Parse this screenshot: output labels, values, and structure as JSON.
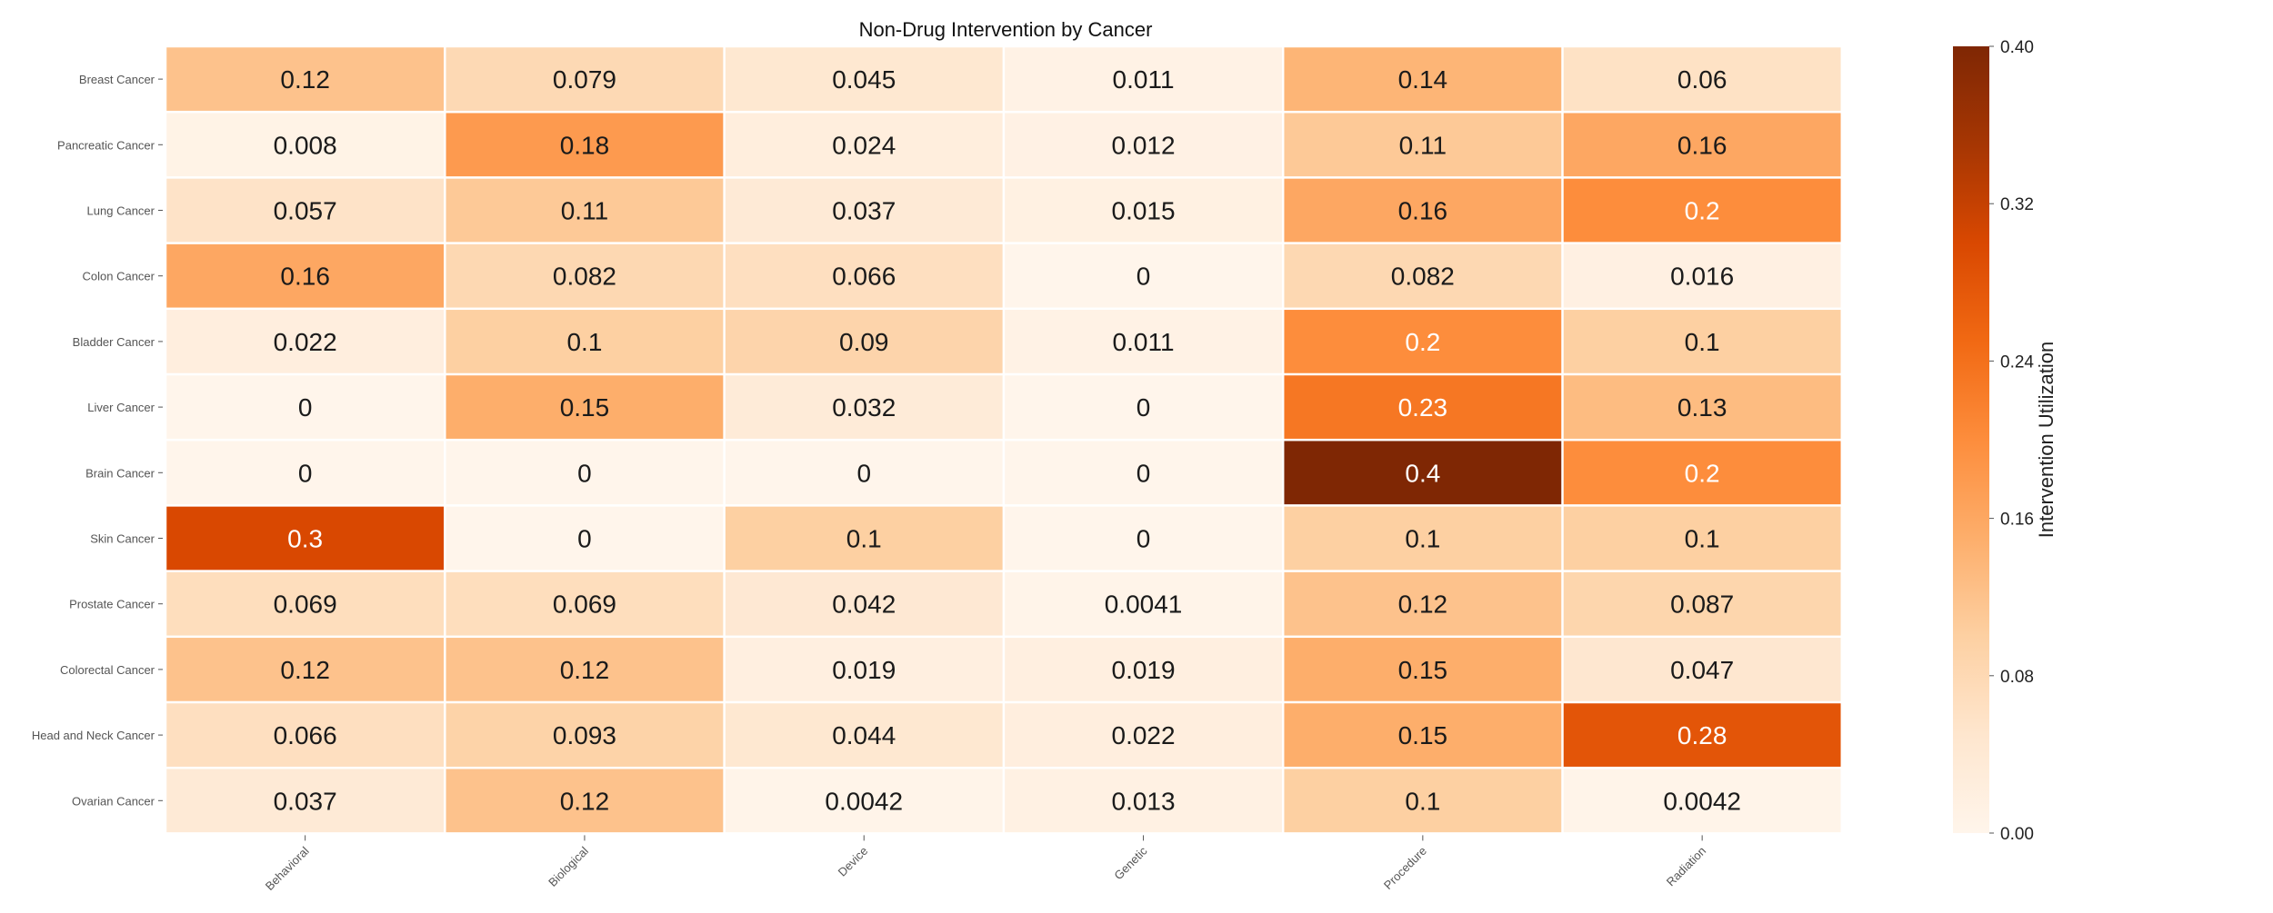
{
  "chart_data": {
    "type": "heatmap",
    "title": "Non-Drug Intervention by Cancer",
    "rows": [
      "Breast Cancer",
      "Pancreatic Cancer",
      "Lung Cancer",
      "Colon Cancer",
      "Bladder Cancer",
      "Liver Cancer",
      "Brain Cancer",
      "Skin Cancer",
      "Prostate Cancer",
      "Colorectal Cancer",
      "Head and Neck Cancer",
      "Ovarian Cancer"
    ],
    "columns": [
      "Behavioral",
      "Biological",
      "Device",
      "Genetic",
      "Procedure",
      "Radiation"
    ],
    "values": [
      [
        0.12,
        0.079,
        0.045,
        0.011,
        0.14,
        0.06
      ],
      [
        0.008,
        0.18,
        0.024,
        0.012,
        0.11,
        0.16
      ],
      [
        0.057,
        0.11,
        0.037,
        0.015,
        0.16,
        0.2
      ],
      [
        0.16,
        0.082,
        0.066,
        0,
        0.082,
        0.016
      ],
      [
        0.022,
        0.1,
        0.09,
        0.011,
        0.2,
        0.1
      ],
      [
        0,
        0.15,
        0.032,
        0,
        0.23,
        0.13
      ],
      [
        0,
        0,
        0,
        0,
        0.4,
        0.2
      ],
      [
        0.3,
        0,
        0.1,
        0,
        0.1,
        0.1
      ],
      [
        0.069,
        0.069,
        0.042,
        0.0041,
        0.12,
        0.087
      ],
      [
        0.12,
        0.12,
        0.019,
        0.019,
        0.15,
        0.047
      ],
      [
        0.066,
        0.093,
        0.044,
        0.022,
        0.15,
        0.28
      ],
      [
        0.037,
        0.12,
        0.0042,
        0.013,
        0.1,
        0.0042
      ]
    ],
    "labels": [
      [
        "0.12",
        "0.079",
        "0.045",
        "0.011",
        "0.14",
        "0.06"
      ],
      [
        "0.008",
        "0.18",
        "0.024",
        "0.012",
        "0.11",
        "0.16"
      ],
      [
        "0.057",
        "0.11",
        "0.037",
        "0.015",
        "0.16",
        "0.2"
      ],
      [
        "0.16",
        "0.082",
        "0.066",
        "0",
        "0.082",
        "0.016"
      ],
      [
        "0.022",
        "0.1",
        "0.09",
        "0.011",
        "0.2",
        "0.1"
      ],
      [
        "0",
        "0.15",
        "0.032",
        "0",
        "0.23",
        "0.13"
      ],
      [
        "0",
        "0",
        "0",
        "0",
        "0.4",
        "0.2"
      ],
      [
        "0.3",
        "0",
        "0.1",
        "0",
        "0.1",
        "0.1"
      ],
      [
        "0.069",
        "0.069",
        "0.042",
        "0.0041",
        "0.12",
        "0.087"
      ],
      [
        "0.12",
        "0.12",
        "0.019",
        "0.019",
        "0.15",
        "0.047"
      ],
      [
        "0.066",
        "0.093",
        "0.044",
        "0.022",
        "0.15",
        "0.28"
      ],
      [
        "0.037",
        "0.12",
        "0.0042",
        "0.013",
        "0.1",
        "0.0042"
      ]
    ],
    "colorbar": {
      "label": "Intervention Utilization",
      "range": [
        0,
        0.4
      ],
      "ticks": [
        "0.00",
        "0.08",
        "0.16",
        "0.24",
        "0.32",
        "0.40"
      ],
      "colormap": "Oranges",
      "colors": [
        "#fff5eb",
        "#fee6ce",
        "#fdd0a2",
        "#fdae6b",
        "#fd8d3c",
        "#f16913",
        "#d94801",
        "#a63603",
        "#7f2704"
      ]
    },
    "grid": false,
    "legend": "colorbar-right"
  }
}
